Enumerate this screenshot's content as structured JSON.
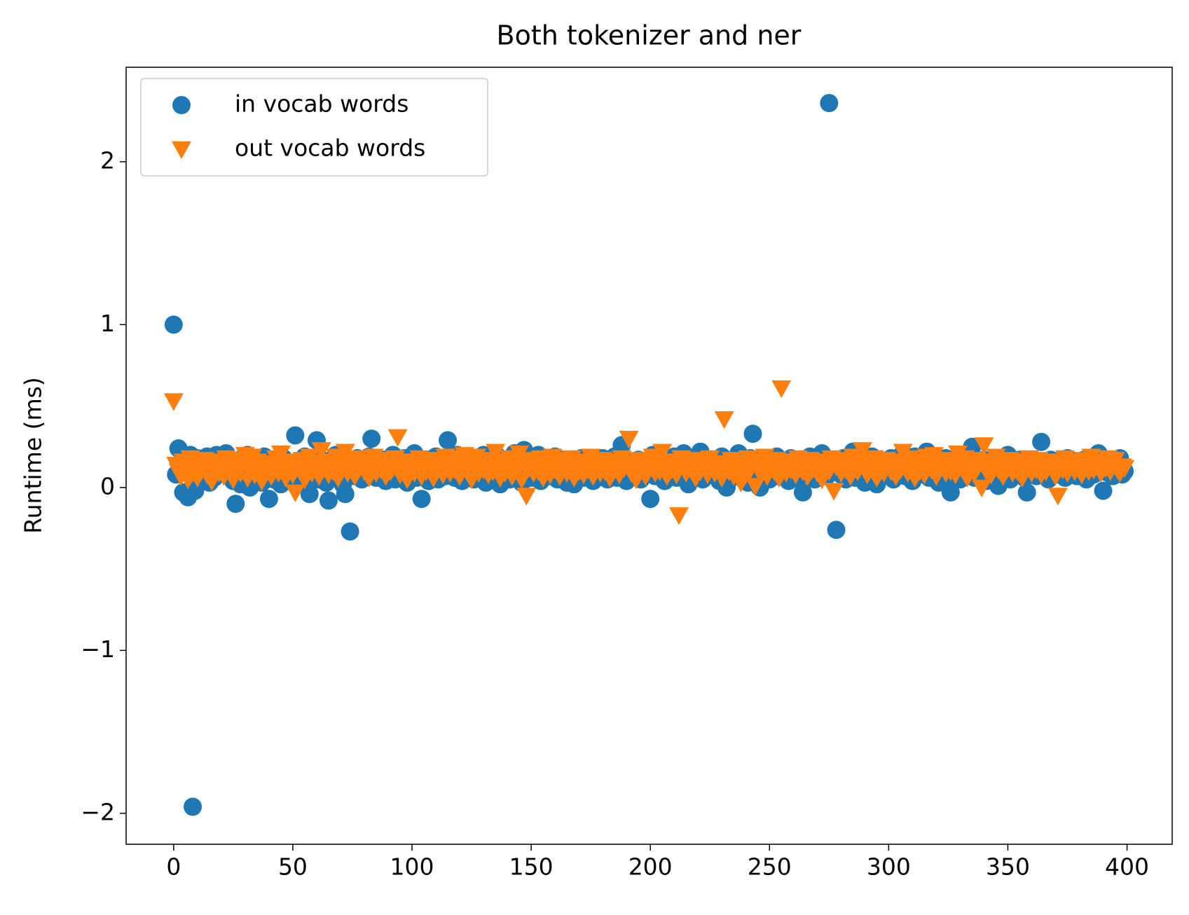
{
  "chart_data": {
    "type": "scatter",
    "title": "Both tokenizer and ner",
    "y_label": "Runtime (ms)",
    "x": [
      0,
      1,
      2,
      3,
      4,
      5,
      6,
      7,
      8,
      9,
      10,
      11,
      12,
      13,
      14,
      15,
      16,
      17,
      18,
      19,
      20,
      21,
      22,
      23,
      24,
      25,
      26,
      27,
      28,
      29,
      30,
      31,
      32,
      33,
      34,
      35,
      36,
      37,
      38,
      39,
      40,
      41,
      42,
      43,
      44,
      45,
      46,
      47,
      48,
      49,
      50,
      51,
      52,
      53,
      54,
      55,
      56,
      57,
      58,
      59,
      60,
      61,
      62,
      63,
      64,
      65,
      66,
      67,
      68,
      69,
      70,
      71,
      72,
      73,
      74,
      75,
      76,
      77,
      78,
      79,
      80,
      81,
      82,
      83,
      84,
      85,
      86,
      87,
      88,
      89,
      90,
      91,
      92,
      93,
      94,
      95,
      96,
      97,
      98,
      99,
      100,
      101,
      102,
      103,
      104,
      105,
      106,
      107,
      108,
      109,
      110,
      111,
      112,
      113,
      114,
      115,
      116,
      117,
      118,
      119,
      120,
      121,
      122,
      123,
      124,
      125,
      126,
      127,
      128,
      129,
      130,
      131,
      132,
      133,
      134,
      135,
      136,
      137,
      138,
      139,
      140,
      141,
      142,
      143,
      144,
      145,
      146,
      147,
      148,
      149,
      150,
      151,
      152,
      153,
      154,
      155,
      156,
      157,
      158,
      159,
      160,
      161,
      162,
      163,
      164,
      165,
      166,
      167,
      168,
      169,
      170,
      171,
      172,
      173,
      174,
      175,
      176,
      177,
      178,
      179,
      180,
      181,
      182,
      183,
      184,
      185,
      186,
      187,
      188,
      189,
      190,
      191,
      192,
      193,
      194,
      195,
      196,
      197,
      198,
      199,
      200,
      201,
      202,
      203,
      204,
      205,
      206,
      207,
      208,
      209,
      210,
      211,
      212,
      213,
      214,
      215,
      216,
      217,
      218,
      219,
      220,
      221,
      222,
      223,
      224,
      225,
      226,
      227,
      228,
      229,
      230,
      231,
      232,
      233,
      234,
      235,
      236,
      237,
      238,
      239,
      240,
      241,
      242,
      243,
      244,
      245,
      246,
      247,
      248,
      249,
      250,
      251,
      252,
      253,
      254,
      255,
      256,
      257,
      258,
      259,
      260,
      261,
      262,
      263,
      264,
      265,
      266,
      267,
      268,
      269,
      270,
      271,
      272,
      273,
      274,
      275,
      276,
      277,
      278,
      279,
      280,
      281,
      282,
      283,
      284,
      285,
      286,
      287,
      288,
      289,
      290,
      291,
      292,
      293,
      294,
      295,
      296,
      297,
      298,
      299,
      300,
      301,
      302,
      303,
      304,
      305,
      306,
      307,
      308,
      309,
      310,
      311,
      312,
      313,
      314,
      315,
      316,
      317,
      318,
      319,
      320,
      321,
      322,
      323,
      324,
      325,
      326,
      327,
      328,
      329,
      330,
      331,
      332,
      333,
      334,
      335,
      336,
      337,
      338,
      339,
      340,
      341,
      342,
      343,
      344,
      345,
      346,
      347,
      348,
      349,
      350,
      351,
      352,
      353,
      354,
      355,
      356,
      357,
      358,
      359,
      360,
      361,
      362,
      363,
      364,
      365,
      366,
      367,
      368,
      369,
      370,
      371,
      372,
      373,
      374,
      375,
      376,
      377,
      378,
      379,
      380,
      381,
      382,
      383,
      384,
      385,
      386,
      387,
      388,
      389,
      390,
      391,
      392,
      393,
      394,
      395,
      396,
      397,
      398,
      399
    ],
    "series": [
      {
        "name": "in vocab words",
        "color": "#1f77b4",
        "marker": "o",
        "values": [
          1.0,
          0.08,
          0.24,
          0.15,
          -0.03,
          0.12,
          -0.06,
          0.2,
          -1.96,
          -0.02,
          0.18,
          0.05,
          0.14,
          0.09,
          0.19,
          0.03,
          0.11,
          0.06,
          0.2,
          0.13,
          0.1,
          0.16,
          0.21,
          0.07,
          0.12,
          0.04,
          -0.1,
          0.15,
          0.02,
          0.18,
          0.08,
          0.2,
          0.0,
          0.13,
          0.06,
          0.17,
          0.1,
          0.03,
          0.19,
          0.09,
          -0.07,
          0.14,
          0.05,
          0.16,
          0.11,
          0.02,
          0.18,
          0.07,
          0.13,
          0.1,
          0.04,
          0.32,
          0.15,
          0.08,
          0.12,
          0.19,
          0.06,
          -0.04,
          0.14,
          0.1,
          0.29,
          0.05,
          0.17,
          0.11,
          0.03,
          -0.08,
          0.15,
          0.09,
          0.2,
          0.06,
          0.13,
          0.02,
          -0.04,
          0.16,
          -0.27,
          0.1,
          0.07,
          0.18,
          0.12,
          0.05,
          0.14,
          0.09,
          0.19,
          0.3,
          0.11,
          0.06,
          0.15,
          0.08,
          0.17,
          0.04,
          0.13,
          0.1,
          0.2,
          0.05,
          0.16,
          0.12,
          0.07,
          0.18,
          0.03,
          0.14,
          0.09,
          0.21,
          0.06,
          0.15,
          -0.07,
          0.11,
          0.17,
          0.04,
          0.13,
          0.08,
          0.19,
          0.05,
          0.12,
          0.16,
          0.07,
          0.29,
          0.1,
          0.14,
          0.06,
          0.2,
          0.11,
          0.04,
          0.17,
          0.09,
          0.13,
          0.18,
          0.05,
          0.12,
          0.15,
          0.08,
          0.2,
          0.03,
          0.14,
          0.1,
          0.16,
          0.06,
          0.19,
          0.02,
          0.13,
          0.09,
          0.17,
          0.05,
          0.12,
          0.21,
          0.08,
          0.15,
          0.03,
          0.23,
          0.1,
          0.14,
          0.06,
          0.18,
          0.11,
          0.2,
          0.04,
          0.13,
          0.09,
          0.16,
          0.07,
          0.12,
          0.19,
          0.05,
          0.14,
          0.1,
          0.17,
          0.03,
          0.12,
          0.08,
          0.02,
          0.15,
          0.11,
          0.18,
          0.06,
          0.13,
          0.09,
          0.16,
          0.04,
          0.14,
          0.1,
          0.07,
          0.18,
          0.12,
          0.05,
          0.15,
          0.09,
          0.19,
          0.06,
          0.13,
          0.26,
          0.1,
          0.04,
          0.16,
          0.08,
          0.14,
          0.11,
          0.17,
          0.05,
          0.12,
          0.15,
          0.09,
          -0.07,
          0.2,
          0.07,
          0.13,
          0.1,
          0.18,
          0.04,
          0.15,
          0.11,
          0.08,
          0.19,
          0.06,
          0.14,
          0.09,
          0.21,
          0.12,
          0.02,
          0.16,
          0.1,
          0.13,
          0.07,
          0.22,
          0.05,
          0.14,
          0.11,
          0.17,
          0.08,
          0.12,
          0.15,
          0.04,
          0.19,
          0.1,
          0.0,
          0.13,
          0.06,
          0.16,
          0.09,
          0.21,
          0.12,
          0.05,
          0.15,
          0.03,
          0.18,
          0.33,
          0.1,
          0.14,
          0.0,
          0.17,
          0.08,
          0.12,
          0.05,
          0.16,
          0.11,
          0.19,
          0.07,
          0.13,
          0.09,
          0.15,
          0.04,
          0.18,
          0.1,
          0.14,
          0.06,
          0.12,
          -0.03,
          0.17,
          0.08,
          0.19,
          0.11,
          0.05,
          0.15,
          0.09,
          0.21,
          0.13,
          0.07,
          2.36,
          0.1,
          0.16,
          -0.26,
          0.12,
          0.08,
          0.18,
          0.05,
          0.14,
          0.1,
          0.22,
          0.06,
          0.13,
          0.17,
          0.09,
          0.03,
          0.15,
          0.11,
          0.19,
          0.07,
          0.02,
          0.16,
          0.12,
          0.08,
          0.14,
          0.1,
          0.18,
          0.05,
          0.13,
          0.16,
          0.09,
          0.21,
          0.07,
          0.12,
          0.15,
          0.04,
          0.19,
          0.11,
          0.08,
          0.14,
          0.1,
          0.22,
          0.06,
          0.13,
          0.17,
          0.09,
          0.03,
          0.15,
          0.11,
          0.18,
          0.07,
          -0.03,
          0.14,
          0.1,
          0.16,
          0.05,
          0.12,
          0.19,
          0.08,
          0.13,
          0.25,
          0.06,
          0.15,
          0.11,
          0.09,
          0.17,
          0.04,
          0.13,
          0.1,
          0.16,
          0.07,
          0.01,
          0.14,
          0.09,
          0.18,
          0.2,
          0.05,
          0.12,
          0.15,
          0.08,
          0.17,
          0.11,
          0.06,
          -0.03,
          0.14,
          0.1,
          0.16,
          0.07,
          0.13,
          0.28,
          0.09,
          0.12,
          0.05,
          0.17,
          0.11,
          0.08,
          0.15,
          0.1,
          0.14,
          0.06,
          0.18,
          0.12,
          0.09,
          0.16,
          0.07,
          0.13,
          0.1,
          0.17,
          0.05,
          0.14,
          0.11,
          0.08,
          0.19,
          0.21,
          0.12,
          -0.02,
          0.16,
          0.09,
          0.13,
          0.07,
          0.15,
          0.11,
          0.18,
          0.08,
          0.1
        ]
      },
      {
        "name": "out vocab words",
        "color": "#ff7f0e",
        "marker": "v",
        "values": [
          0.53,
          0.14,
          0.1,
          0.07,
          0.16,
          0.12,
          0.05,
          0.18,
          0.09,
          0.13,
          0.06,
          0.15,
          0.11,
          0.17,
          0.08,
          0.14,
          0.04,
          0.12,
          0.16,
          0.09,
          0.13,
          0.07,
          0.18,
          0.1,
          0.15,
          0.05,
          0.12,
          0.17,
          0.09,
          0.14,
          0.2,
          0.06,
          0.11,
          0.19,
          0.08,
          0.16,
          0.12,
          0.04,
          0.14,
          0.1,
          0.15,
          0.07,
          0.13,
          0.18,
          0.09,
          0.21,
          0.11,
          0.06,
          0.16,
          0.12,
          0.08,
          -0.03,
          0.14,
          0.1,
          0.17,
          0.05,
          0.13,
          0.19,
          0.09,
          0.15,
          0.11,
          0.07,
          0.23,
          0.12,
          0.16,
          0.08,
          0.14,
          0.1,
          0.19,
          0.06,
          0.13,
          0.17,
          0.22,
          0.09,
          0.15,
          0.11,
          0.07,
          0.18,
          0.12,
          0.14,
          0.1,
          0.16,
          0.06,
          0.13,
          0.19,
          0.09,
          0.15,
          0.11,
          0.17,
          0.07,
          0.14,
          0.1,
          0.12,
          0.18,
          0.31,
          0.08,
          0.13,
          0.16,
          0.05,
          0.11,
          0.15,
          0.09,
          0.13,
          0.18,
          0.07,
          0.14,
          0.1,
          0.16,
          0.12,
          0.06,
          0.17,
          0.11,
          0.14,
          0.08,
          0.19,
          0.13,
          0.09,
          0.15,
          0.11,
          0.18,
          0.07,
          0.14,
          0.2,
          0.1,
          0.16,
          0.05,
          0.13,
          0.19,
          0.09,
          0.15,
          0.11,
          0.17,
          0.08,
          0.14,
          0.1,
          0.22,
          0.12,
          0.06,
          0.16,
          0.09,
          0.13,
          0.18,
          0.07,
          0.15,
          0.11,
          0.21,
          0.05,
          0.14,
          -0.05,
          0.12,
          0.17,
          0.09,
          0.15,
          0.1,
          0.18,
          0.06,
          0.13,
          0.16,
          0.08,
          0.19,
          0.11,
          0.14,
          0.07,
          0.17,
          0.12,
          0.09,
          0.15,
          0.18,
          0.06,
          0.13,
          0.1,
          0.16,
          0.08,
          0.14,
          0.11,
          0.19,
          0.07,
          0.15,
          0.12,
          0.09,
          0.17,
          0.1,
          0.14,
          0.06,
          0.16,
          0.11,
          0.13,
          0.08,
          0.18,
          0.12,
          0.15,
          0.3,
          0.09,
          0.14,
          0.05,
          0.17,
          0.11,
          0.13,
          0.07,
          0.16,
          0.12,
          0.19,
          0.09,
          0.15,
          0.1,
          0.22,
          0.13,
          0.07,
          0.16,
          0.11,
          0.14,
          0.08,
          -0.17,
          0.18,
          0.12,
          0.09,
          0.15,
          0.11,
          0.17,
          0.06,
          0.14,
          0.1,
          0.16,
          0.12,
          0.08,
          0.18,
          0.13,
          0.09,
          0.15,
          0.11,
          0.06,
          0.42,
          0.14,
          0.1,
          0.17,
          0.07,
          0.13,
          0.15,
          0.03,
          0.12,
          0.08,
          0.18,
          0.11,
          0.14,
          0.01,
          0.16,
          0.09,
          0.13,
          0.19,
          0.07,
          0.15,
          0.12,
          0.1,
          0.17,
          0.06,
          0.61,
          0.13,
          0.09,
          0.16,
          0.11,
          0.14,
          0.08,
          0.18,
          0.12,
          0.1,
          0.15,
          0.07,
          0.17,
          0.11,
          0.13,
          0.09,
          0.16,
          0.05,
          0.14,
          0.12,
          0.1,
          0.18,
          -0.02,
          0.13,
          0.15,
          0.09,
          0.17,
          0.11,
          0.14,
          0.07,
          0.19,
          0.12,
          0.1,
          0.16,
          0.23,
          0.13,
          0.08,
          0.15,
          0.11,
          0.18,
          0.06,
          0.14,
          0.12,
          0.09,
          0.17,
          0.13,
          0.1,
          0.16,
          0.07,
          0.15,
          0.11,
          0.22,
          0.14,
          0.09,
          0.18,
          0.12,
          0.06,
          0.16,
          0.1,
          0.14,
          0.08,
          0.19,
          0.13,
          0.11,
          0.2,
          0.07,
          0.15,
          0.12,
          0.17,
          0.09,
          0.14,
          0.1,
          0.16,
          0.08,
          0.21,
          0.13,
          0.11,
          0.18,
          0.06,
          0.15,
          0.12,
          0.09,
          0.17,
          0.14,
          0.0,
          0.26,
          0.1,
          0.16,
          0.08,
          0.13,
          0.19,
          0.11,
          0.15,
          0.07,
          0.14,
          0.12,
          0.17,
          0.09,
          0.13,
          0.1,
          0.16,
          0.06,
          0.15,
          0.12,
          0.18,
          0.09,
          0.14,
          0.11,
          0.17,
          0.08,
          0.13,
          0.1,
          0.16,
          0.12,
          0.15,
          0.07,
          -0.05,
          0.14,
          0.11,
          0.18,
          0.09,
          0.13,
          0.16,
          0.1,
          0.15,
          0.12,
          0.08,
          0.17,
          0.14,
          0.1,
          0.19,
          0.11,
          0.13,
          0.16,
          0.09,
          0.15,
          0.12,
          0.18,
          0.1,
          0.14,
          0.17,
          0.11,
          0.09,
          0.13,
          0.12
        ]
      }
    ],
    "xlim": [
      -19.95,
      418.95
    ],
    "xticks": [
      0,
      50,
      100,
      150,
      200,
      250,
      300,
      350,
      400
    ],
    "ylim": [
      -2.19,
      2.58
    ],
    "yticks": [
      {
        "value": -2,
        "label": "−2"
      },
      {
        "value": -1,
        "label": "−1"
      },
      0,
      1,
      2
    ],
    "legend": "upper left"
  }
}
